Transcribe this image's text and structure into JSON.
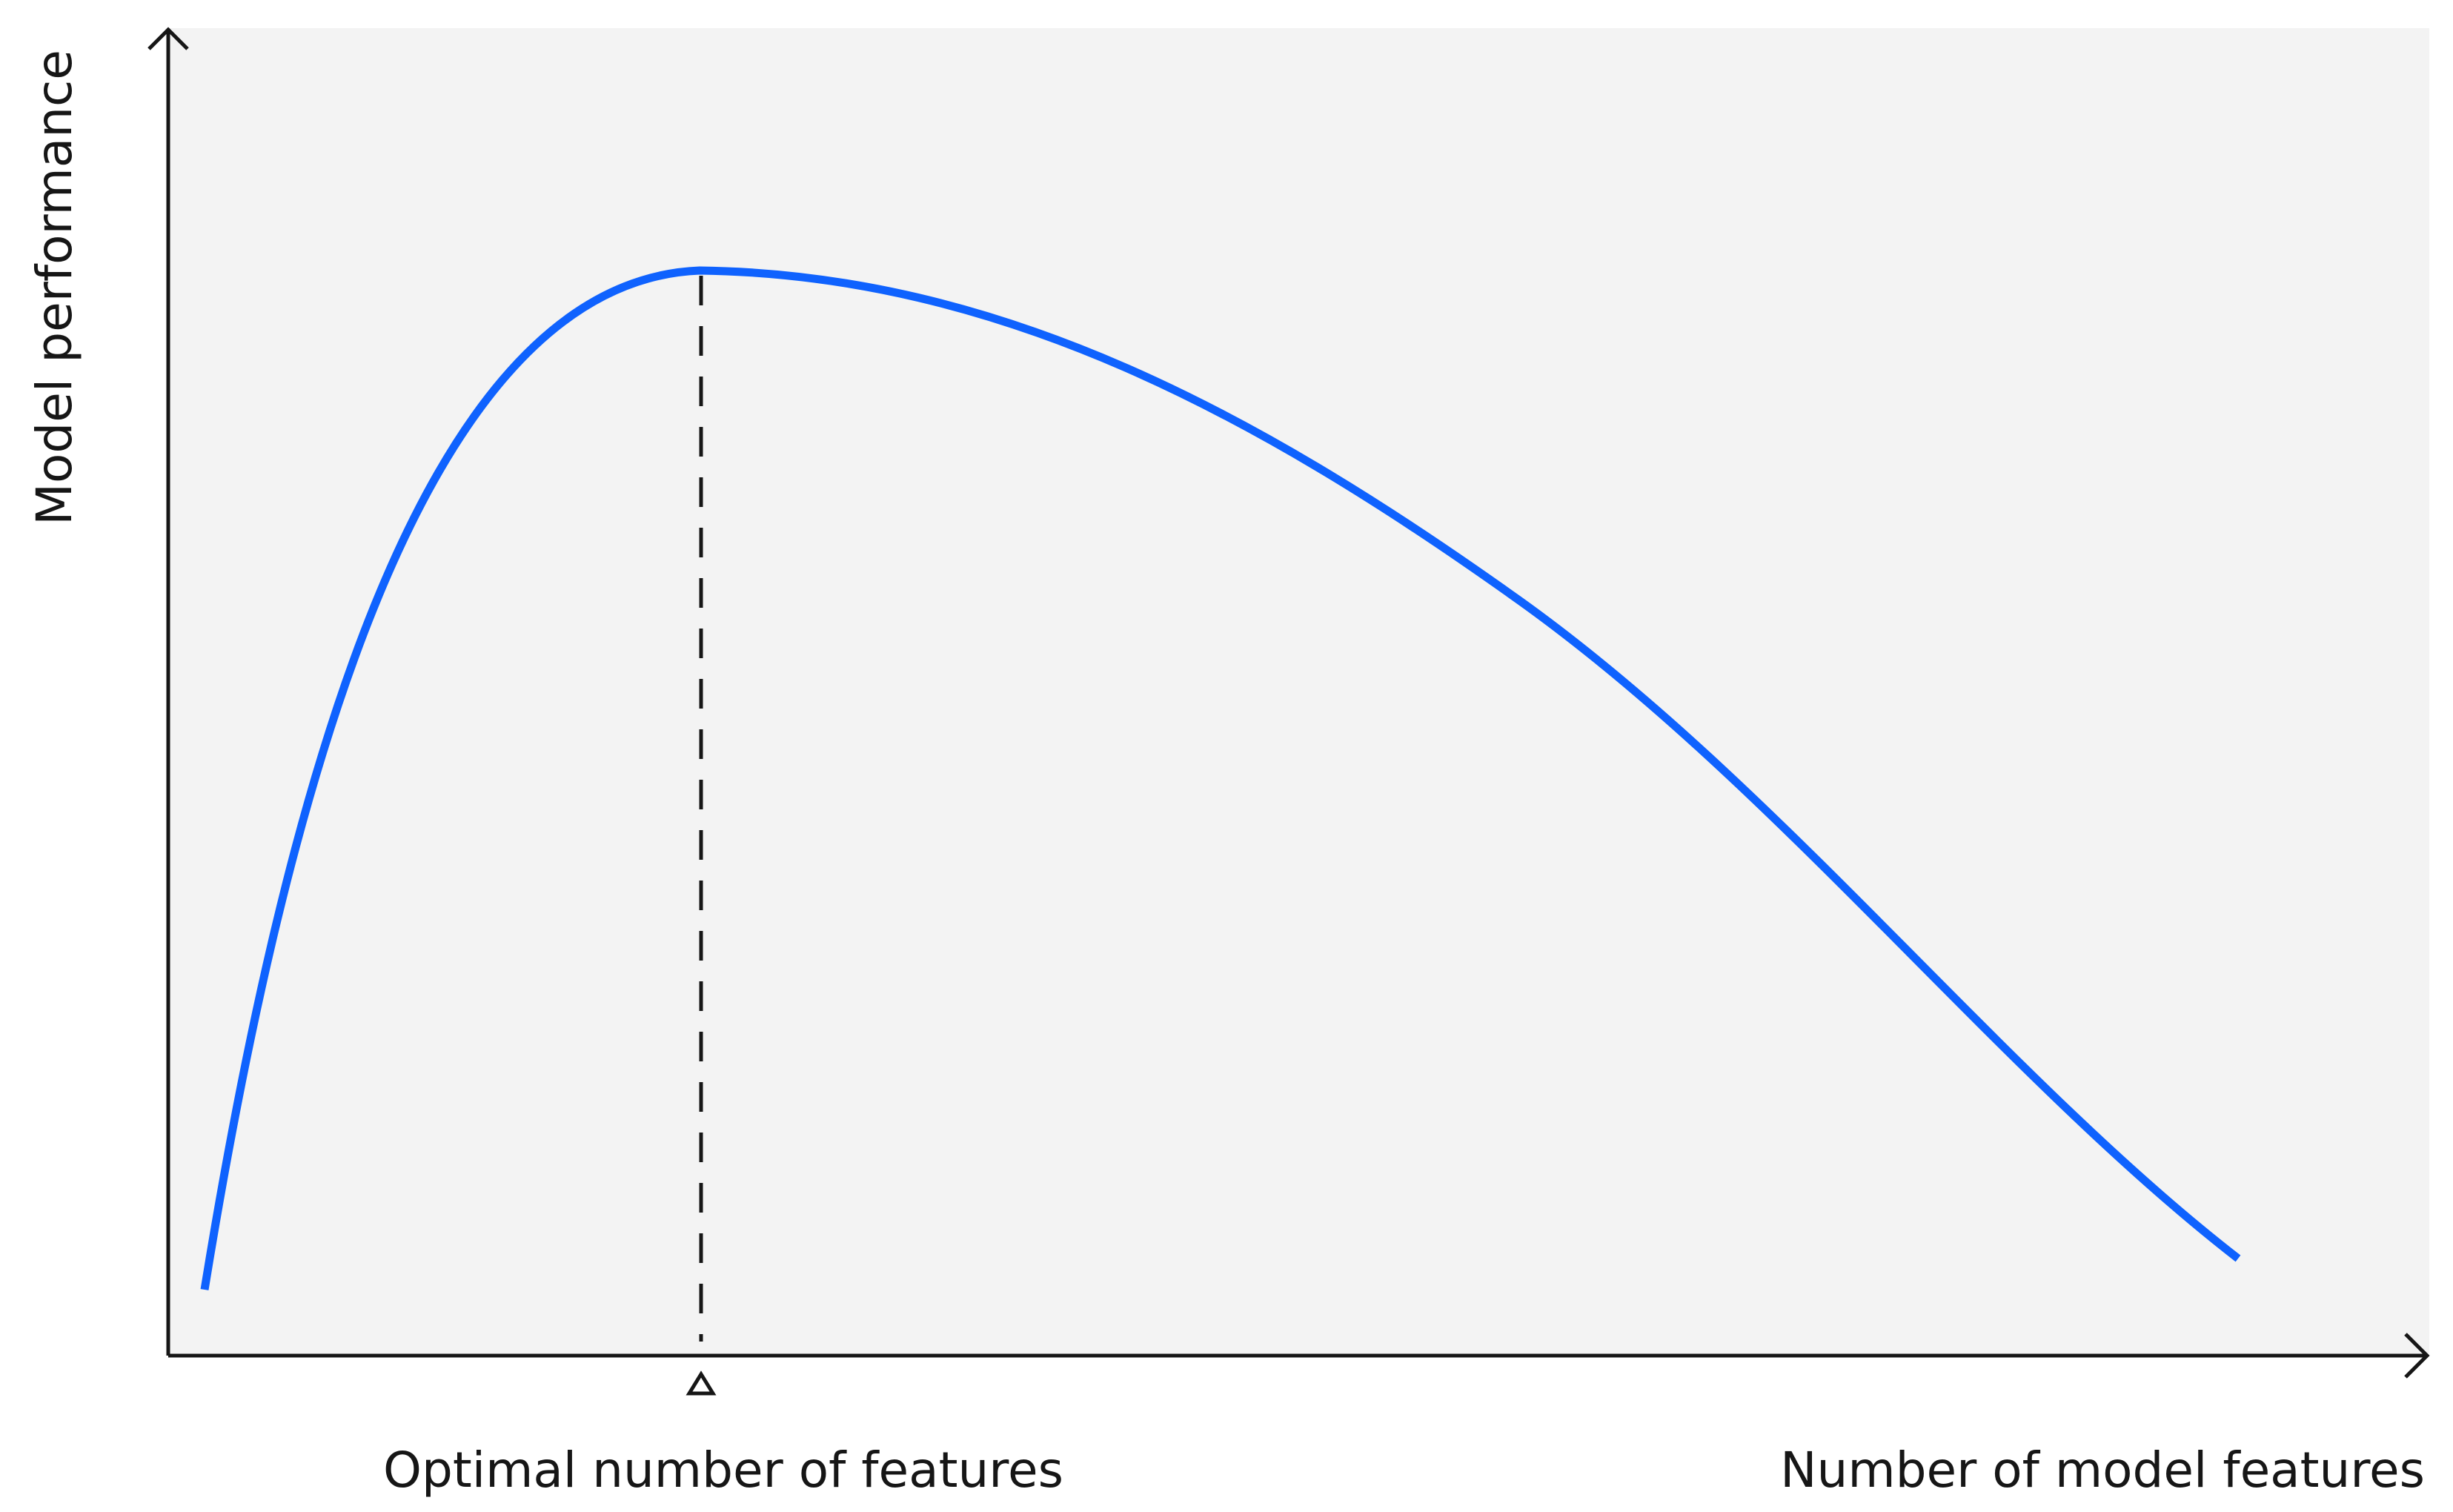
{
  "y_axis_label": "Model performance",
  "x_axis_label": "Number of model features",
  "marker_label": "Optimal number of features"
}
